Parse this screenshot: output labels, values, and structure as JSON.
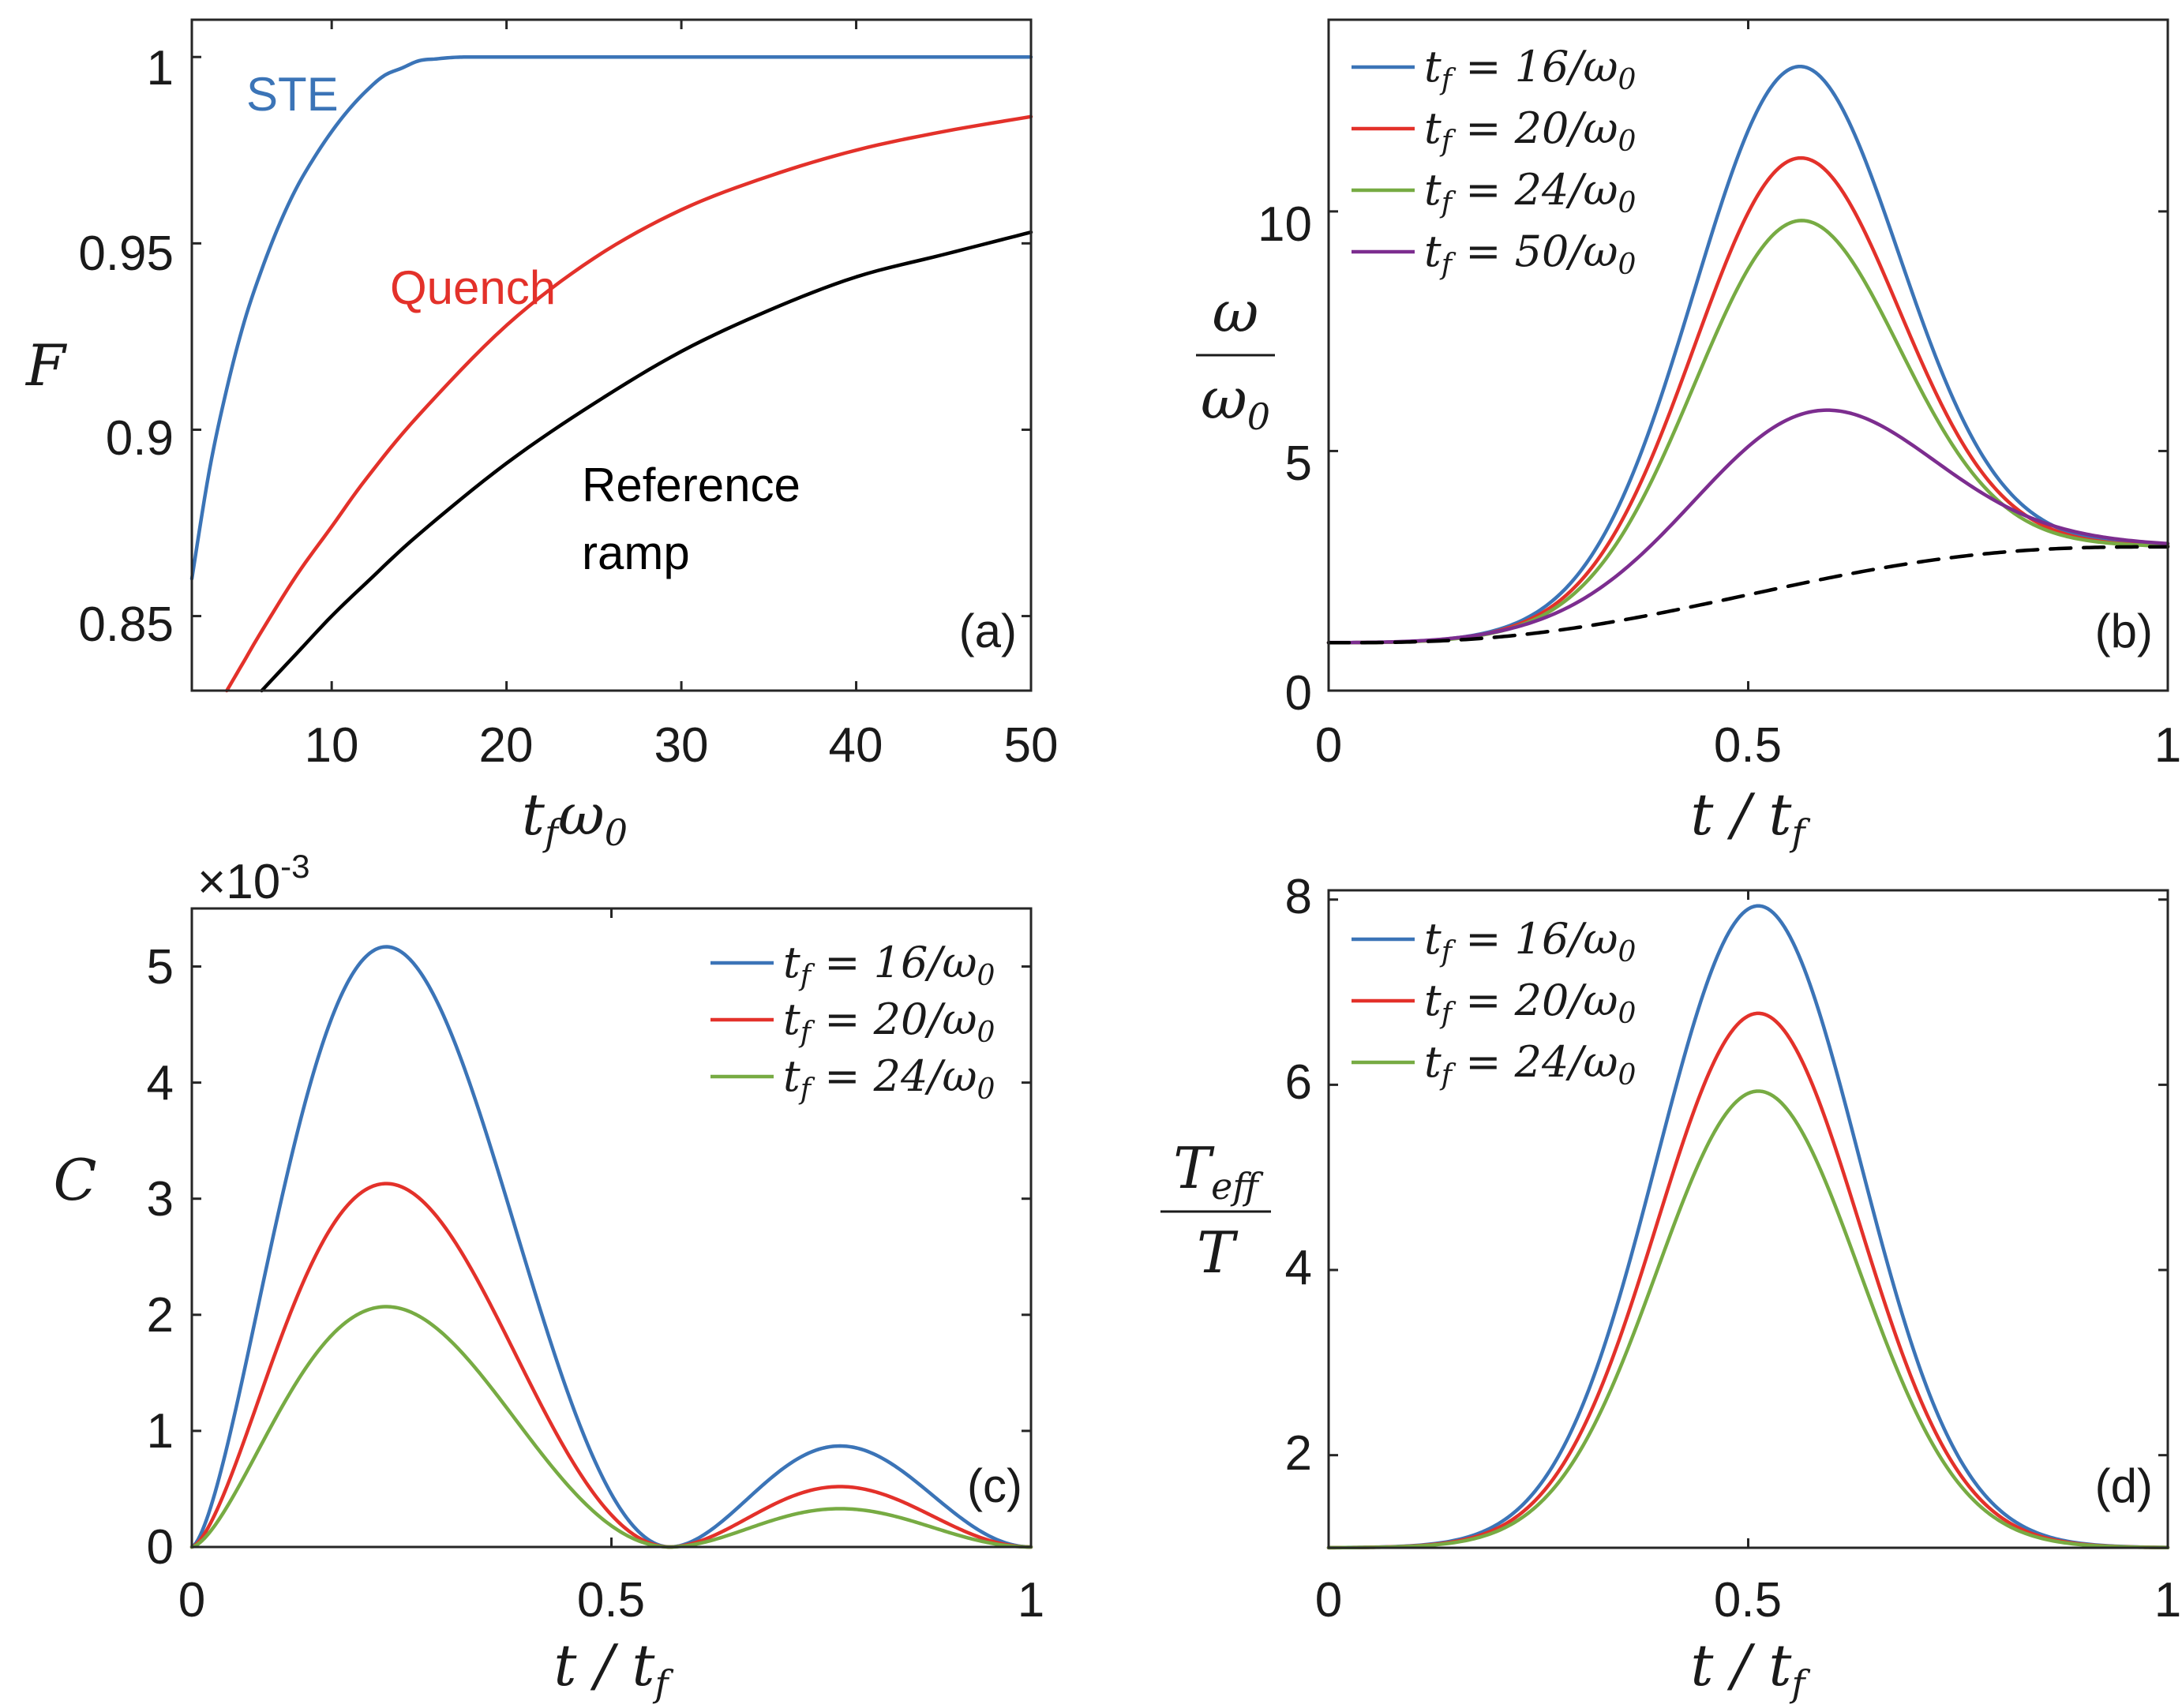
{
  "colors": {
    "blue": "#3b74b7",
    "red": "#e3312a",
    "green": "#77ab43",
    "purple": "#7c2d8f",
    "black": "#000000"
  },
  "chart_data": [
    {
      "id": "a",
      "type": "line",
      "panel_label": "(a)",
      "xlabel": "t_f ω_0",
      "ylabel": "F",
      "xlim": [
        2,
        50
      ],
      "ylim": [
        0.83,
        1.01
      ],
      "xticks": [
        10,
        20,
        30,
        40,
        50
      ],
      "yticks": [
        0.85,
        0.9,
        0.95,
        1
      ],
      "ytick_labels": [
        "0.85",
        "0.9",
        "0.95",
        "1"
      ],
      "annotations": [
        {
          "text": "STE",
          "color": "#3b74b7"
        },
        {
          "text": "Quench",
          "color": "#e3312a"
        },
        {
          "text": "Reference",
          "color": "#000000"
        },
        {
          "text": "ramp",
          "color": "#000000"
        }
      ],
      "series": [
        {
          "name": "STE",
          "color": "#3b74b7",
          "x": [
            2,
            3,
            4,
            5,
            6,
            7,
            8,
            9,
            10,
            11,
            12,
            13,
            14,
            15,
            16,
            17,
            18,
            20,
            25,
            30,
            40,
            50
          ],
          "y": [
            0.86,
            0.889,
            0.911,
            0.929,
            0.943,
            0.955,
            0.965,
            0.973,
            0.98,
            0.986,
            0.991,
            0.995,
            0.997,
            0.999,
            0.9995,
            0.9999,
            1.0,
            1.0,
            1.0,
            1.0,
            1.0,
            1.0
          ]
        },
        {
          "name": "Quench",
          "color": "#e3312a",
          "x": [
            4,
            5,
            6,
            8,
            10,
            12,
            15,
            20,
            25,
            30,
            35,
            40,
            45,
            50
          ],
          "y": [
            0.83,
            0.838,
            0.846,
            0.861,
            0.874,
            0.887,
            0.904,
            0.928,
            0.946,
            0.959,
            0.968,
            0.975,
            0.98,
            0.984
          ]
        },
        {
          "name": "Reference ramp",
          "color": "#000000",
          "x": [
            6,
            8,
            10,
            12,
            15,
            20,
            25,
            30,
            35,
            40,
            45,
            50
          ],
          "y": [
            0.83,
            0.84,
            0.85,
            0.859,
            0.872,
            0.891,
            0.907,
            0.921,
            0.932,
            0.941,
            0.947,
            0.953
          ]
        }
      ]
    },
    {
      "id": "b",
      "type": "line",
      "panel_label": "(b)",
      "xlabel": "t / t_f",
      "ylabel_top": "ω",
      "ylabel_bottom": "ω_0",
      "xlim": [
        0,
        1
      ],
      "ylim": [
        0,
        14
      ],
      "xticks": [
        0,
        0.5,
        1
      ],
      "xtick_labels": [
        "0",
        "0.5",
        "1"
      ],
      "yticks": [
        0,
        5,
        10
      ],
      "legend": [
        "t_f = 16/ω_0",
        "t_f = 20/ω_0",
        "t_f = 24/ω_0",
        "t_f = 50/ω_0"
      ],
      "series": [
        {
          "name": "t_f = 16/ω_0",
          "color": "#3b74b7",
          "peak": 13.0,
          "peak_at": 0.57
        },
        {
          "name": "t_f = 20/ω_0",
          "color": "#e3312a",
          "peak": 11.1,
          "peak_at": 0.57
        },
        {
          "name": "t_f = 24/ω_0",
          "color": "#77ab43",
          "peak": 9.8,
          "peak_at": 0.57
        },
        {
          "name": "t_f = 50/ω_0",
          "color": "#7c2d8f",
          "peak": 5.85,
          "peak_at": 0.6
        },
        {
          "name": "reference ramp (dashed)",
          "color": "#000000",
          "start": 1,
          "end": 3
        }
      ],
      "start_value": 1,
      "end_value": 3
    },
    {
      "id": "c",
      "type": "line",
      "panel_label": "(c)",
      "xlabel": "t / t_f",
      "ylabel": "C",
      "scale_label": "×10",
      "scale_exponent": "-3",
      "xlim": [
        0,
        1
      ],
      "ylim": [
        0,
        5.5
      ],
      "xticks": [
        0,
        0.5,
        1
      ],
      "xtick_labels": [
        "0",
        "0.5",
        "1"
      ],
      "yticks": [
        0,
        1,
        2,
        3,
        4,
        5
      ],
      "legend": [
        "t_f = 16/ω_0",
        "t_f = 20/ω_0",
        "t_f = 24/ω_0"
      ],
      "series": [
        {
          "name": "t_f = 16/ω_0",
          "color": "#3b74b7",
          "peak1": 5.17,
          "peak1_at": 0.245,
          "zero_at": 0.57,
          "peak2": 0.87,
          "peak2_at": 0.79
        },
        {
          "name": "t_f = 20/ω_0",
          "color": "#e3312a",
          "peak1": 3.13,
          "peak1_at": 0.245,
          "zero_at": 0.57,
          "peak2": 0.52,
          "peak2_at": 0.79
        },
        {
          "name": "t_f = 24/ω_0",
          "color": "#77ab43",
          "peak1": 2.07,
          "peak1_at": 0.245,
          "zero_at": 0.57,
          "peak2": 0.33,
          "peak2_at": 0.79
        }
      ]
    },
    {
      "id": "d",
      "type": "line",
      "panel_label": "(d)",
      "xlabel": "t / t_f",
      "ylabel_top": "T_eff",
      "ylabel_bottom": "T",
      "xlim": [
        0,
        1
      ],
      "ylim": [
        1,
        8.1
      ],
      "xticks": [
        0,
        0.5,
        1
      ],
      "xtick_labels": [
        "0",
        "0.5",
        "1"
      ],
      "yticks": [
        2,
        4,
        6,
        8
      ],
      "legend": [
        "t_f = 16/ω_0",
        "t_f = 20/ω_0",
        "t_f = 24/ω_0"
      ],
      "series": [
        {
          "name": "t_f = 16/ω_0",
          "color": "#3b74b7",
          "peak": 7.93,
          "peak_at": 0.515
        },
        {
          "name": "t_f = 20/ω_0",
          "color": "#e3312a",
          "peak": 6.77,
          "peak_at": 0.515
        },
        {
          "name": "t_f = 24/ω_0",
          "color": "#77ab43",
          "peak": 5.93,
          "peak_at": 0.515
        }
      ]
    }
  ]
}
